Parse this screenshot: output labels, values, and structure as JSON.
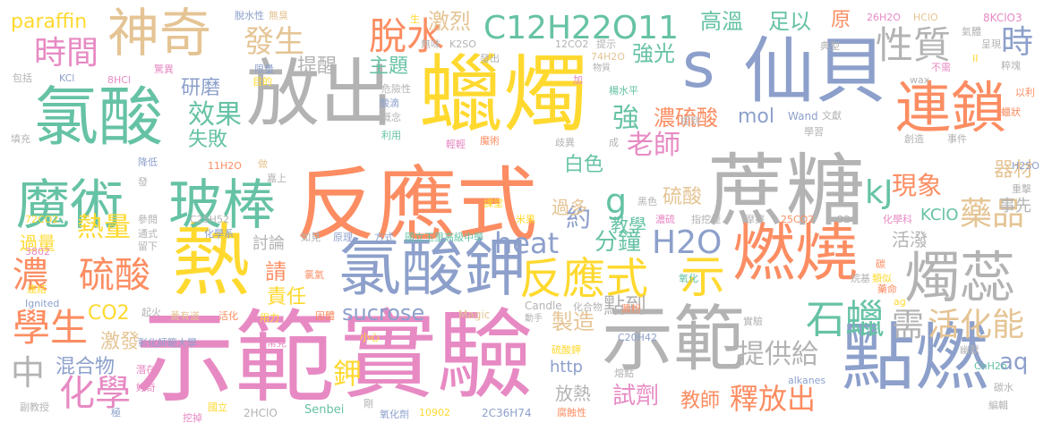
{
  "palette": {
    "pink": "#e78ac3",
    "orange": "#fc8d62",
    "yellow": "#ffd92f",
    "green": "#66c2a5",
    "blue": "#8da0cb",
    "lime": "#a6d854",
    "tan": "#e5c494",
    "gray": "#b3b3b3"
  },
  "words": [
    {
      "text": "示範",
      "color": "#e78ac3"
    },
    {
      "text": "實驗",
      "color": "#e78ac3"
    },
    {
      "text": "反應式",
      "color": "#fc8d62"
    },
    {
      "text": "蠟燭",
      "color": "#ffd92f"
    },
    {
      "text": "蔗糖",
      "color": "#b3b3b3"
    },
    {
      "text": "放出",
      "color": "#b3b3b3"
    },
    {
      "text": "仙貝",
      "color": "#8da0cb"
    },
    {
      "text": "氯酸",
      "color": "#66c2a5"
    },
    {
      "text": "熱",
      "color": "#ffd92f"
    },
    {
      "text": "示範",
      "color": "#b3b3b3"
    },
    {
      "text": "點燃",
      "color": "#8da0cb"
    },
    {
      "text": "氯酸鉀",
      "color": "#8da0cb"
    },
    {
      "text": "燃燒",
      "color": "#fc8d62"
    },
    {
      "text": "魔術",
      "color": "#66c2a5"
    },
    {
      "text": "玻棒",
      "color": "#66c2a5"
    },
    {
      "text": "神奇",
      "color": "#e5c494"
    },
    {
      "text": "連鎖",
      "color": "#fc8d62"
    },
    {
      "text": "燭蕊",
      "color": "#b3b3b3"
    },
    {
      "text": "s",
      "color": "#8da0cb"
    },
    {
      "text": "反應式",
      "color": "#ffd92f"
    },
    {
      "text": "示",
      "color": "#ffd92f"
    },
    {
      "text": "脫水",
      "color": "#fc8d62"
    },
    {
      "text": "C12H22O11",
      "color": "#66c2a5"
    },
    {
      "text": "時間",
      "color": "#e78ac3"
    },
    {
      "text": "發生",
      "color": "#e5c494"
    },
    {
      "text": "激烈",
      "color": "#e5c494"
    },
    {
      "text": "高溫",
      "color": "#66c2a5"
    },
    {
      "text": "足以",
      "color": "#66c2a5"
    },
    {
      "text": "原",
      "color": "#fc8d62"
    },
    {
      "text": "性質",
      "color": "#b3b3b3"
    },
    {
      "text": "時",
      "color": "#8da0cb"
    },
    {
      "text": "paraffin",
      "color": "#ffd92f"
    },
    {
      "text": "學生",
      "color": "#fc8d62"
    },
    {
      "text": "濃",
      "color": "#fc8d62"
    },
    {
      "text": "硫酸",
      "color": "#fc8d62"
    },
    {
      "text": "化學",
      "color": "#e78ac3"
    },
    {
      "text": "中",
      "color": "#b3b3b3"
    },
    {
      "text": "熱量",
      "color": "#ffd92f"
    },
    {
      "text": "混合物",
      "color": "#8da0cb"
    },
    {
      "text": "激發",
      "color": "#e5c494"
    },
    {
      "text": "過量",
      "color": "#ffd92f"
    },
    {
      "text": "CO2",
      "color": "#ffd92f"
    },
    {
      "text": "鉀",
      "color": "#ffd92f"
    },
    {
      "text": "責任",
      "color": "#ffd92f"
    },
    {
      "text": "請",
      "color": "#fc8d62"
    },
    {
      "text": "sucrose",
      "color": "#8da0cb"
    },
    {
      "text": "heat",
      "color": "#8da0cb"
    },
    {
      "text": "分鐘",
      "color": "#66c2a5"
    },
    {
      "text": "H2O",
      "color": "#8da0cb"
    },
    {
      "text": "製造",
      "color": "#e5c494"
    },
    {
      "text": "點到",
      "color": "#b3b3b3"
    },
    {
      "text": "石蠟",
      "color": "#66c2a5"
    },
    {
      "text": "需",
      "color": "#b3b3b3"
    },
    {
      "text": "活化能",
      "color": "#e5c494"
    },
    {
      "text": "aq",
      "color": "#8da0cb"
    },
    {
      "text": "提供給",
      "color": "#b3b3b3"
    },
    {
      "text": "釋放出",
      "color": "#fc8d62"
    },
    {
      "text": "教師",
      "color": "#fc8d62"
    },
    {
      "text": "試劑",
      "color": "#e78ac3"
    },
    {
      "text": "放熱",
      "color": "#b3b3b3"
    },
    {
      "text": "http",
      "color": "#8da0cb"
    },
    {
      "text": "老師",
      "color": "#e78ac3"
    },
    {
      "text": "kJ",
      "color": "#66c2a5"
    },
    {
      "text": "現象",
      "color": "#fc8d62"
    },
    {
      "text": "藥品",
      "color": "#e5c494"
    },
    {
      "text": "器材",
      "color": "#e5c494"
    },
    {
      "text": "事先",
      "color": "#b3b3b3"
    },
    {
      "text": "活潑",
      "color": "#b3b3b3"
    },
    {
      "text": "KClO",
      "color": "#66c2a5"
    },
    {
      "text": "g",
      "color": "#66c2a5"
    },
    {
      "text": "約",
      "color": "#8da0cb"
    },
    {
      "text": "白色",
      "color": "#66c2a5"
    },
    {
      "text": "教學",
      "color": "#66c2a5"
    },
    {
      "text": "硫酸",
      "color": "#e5c494"
    },
    {
      "text": "過多",
      "color": "#e5c494"
    },
    {
      "text": "mol",
      "color": "#8da0cb"
    },
    {
      "text": "濃硫酸",
      "color": "#fc8d62"
    },
    {
      "text": "強",
      "color": "#66c2a5"
    },
    {
      "text": "強光",
      "color": "#66c2a5"
    },
    {
      "text": "主題",
      "color": "#66c2a5"
    },
    {
      "text": "提醒",
      "color": "#b3b3b3"
    },
    {
      "text": "研磨",
      "color": "#8da0cb"
    },
    {
      "text": "效果",
      "color": "#66c2a5"
    },
    {
      "text": "失敗",
      "color": "#66c2a5"
    },
    {
      "text": "討論",
      "color": "#b3b3b3"
    }
  ],
  "small_words": [
    "脫水性",
    "無臭",
    "生",
    "26H2O",
    "HClO",
    "8KClO3",
    "氣體",
    "呈現",
    "粹塊",
    "K2SO",
    "無味",
    "12CO2",
    "提示",
    "74H2O",
    "物質",
    "典型",
    "不需",
    "II",
    "包括",
    "KCl",
    "8HCl",
    "驚異",
    "限量",
    "目的",
    "發出",
    "危險性",
    "加",
    "楊水平",
    "wax",
    "以利",
    "酸滴",
    "概念",
    "提到",
    "Wand",
    "文獻",
    "學習",
    "創造",
    "事件",
    "蠟狀",
    "填充",
    "利用",
    "輕輕",
    "魔術",
    "歧異",
    "成",
    "降低",
    "11H2O",
    "做",
    "嘉上",
    "課堂",
    "黑色",
    "H2SO",
    "重擊",
    "發",
    "參閱",
    "米果",
    "濃硫",
    "指挖煙",
    "摩擦",
    "25CO2",
    "O2",
    "化學科",
    "72CO2",
    "C25H52",
    "化學系",
    "通式",
    "留下",
    "3802",
    "如見",
    "原理",
    "方式",
    "國立玉里高級中學",
    "碳",
    "類似",
    "Ignited",
    "連結",
    "氯氣",
    "氧化",
    "烷基",
    "藥命",
    "起火",
    "黃有道",
    "活化",
    "用力",
    "固體",
    "化合物",
    "澱粉",
    "Magic",
    "Candle",
    "動手",
    "實驗",
    "ag",
    "彰化師範大學",
    "常見",
    "小心",
    "硫酸鉀",
    "C20H42",
    "幽默",
    "CnH2n",
    "alkanes",
    "潛在",
    "好奇",
    "熔點",
    "碳水",
    "副教授",
    "極",
    "挖掉",
    "國立",
    "2HClO",
    "Senbei",
    "剛",
    "氧化劑",
    "10902",
    "2C36H74",
    "腐蝕性",
    "編輯"
  ]
}
